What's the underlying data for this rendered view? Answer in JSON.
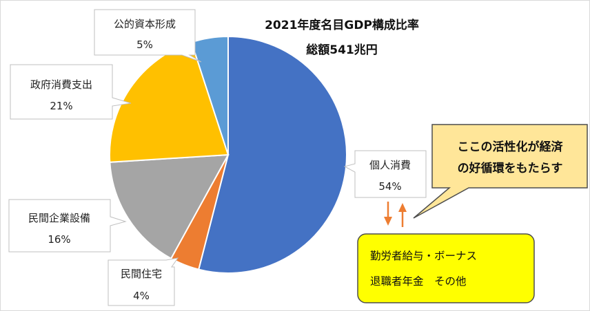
{
  "chart_data": {
    "type": "pie",
    "title": "2021年度名目GDP構成比率",
    "subtitle": "総額541兆円",
    "categories": [
      "個人消費",
      "民間住宅",
      "民間企業設備",
      "政府消費支出",
      "公的資本形成"
    ],
    "values": [
      54,
      4,
      16,
      21,
      5
    ],
    "value_labels": [
      "54%",
      "4%",
      "16%",
      "21%",
      "5%"
    ],
    "colors": [
      "#4472C4",
      "#ED7D31",
      "#A5A5A5",
      "#FFC000",
      "#5B9BD5"
    ],
    "legend": "none"
  },
  "callout": {
    "lines": [
      "ここの活性化が経済",
      "の好循環をもたらす"
    ],
    "fill": "#FFE699"
  },
  "info_box": {
    "lines": [
      "勤労者給与・ボーナス",
      "退職者年金　その他"
    ],
    "fill": "#FFFF00"
  },
  "arrow_color": "#ED7D31"
}
